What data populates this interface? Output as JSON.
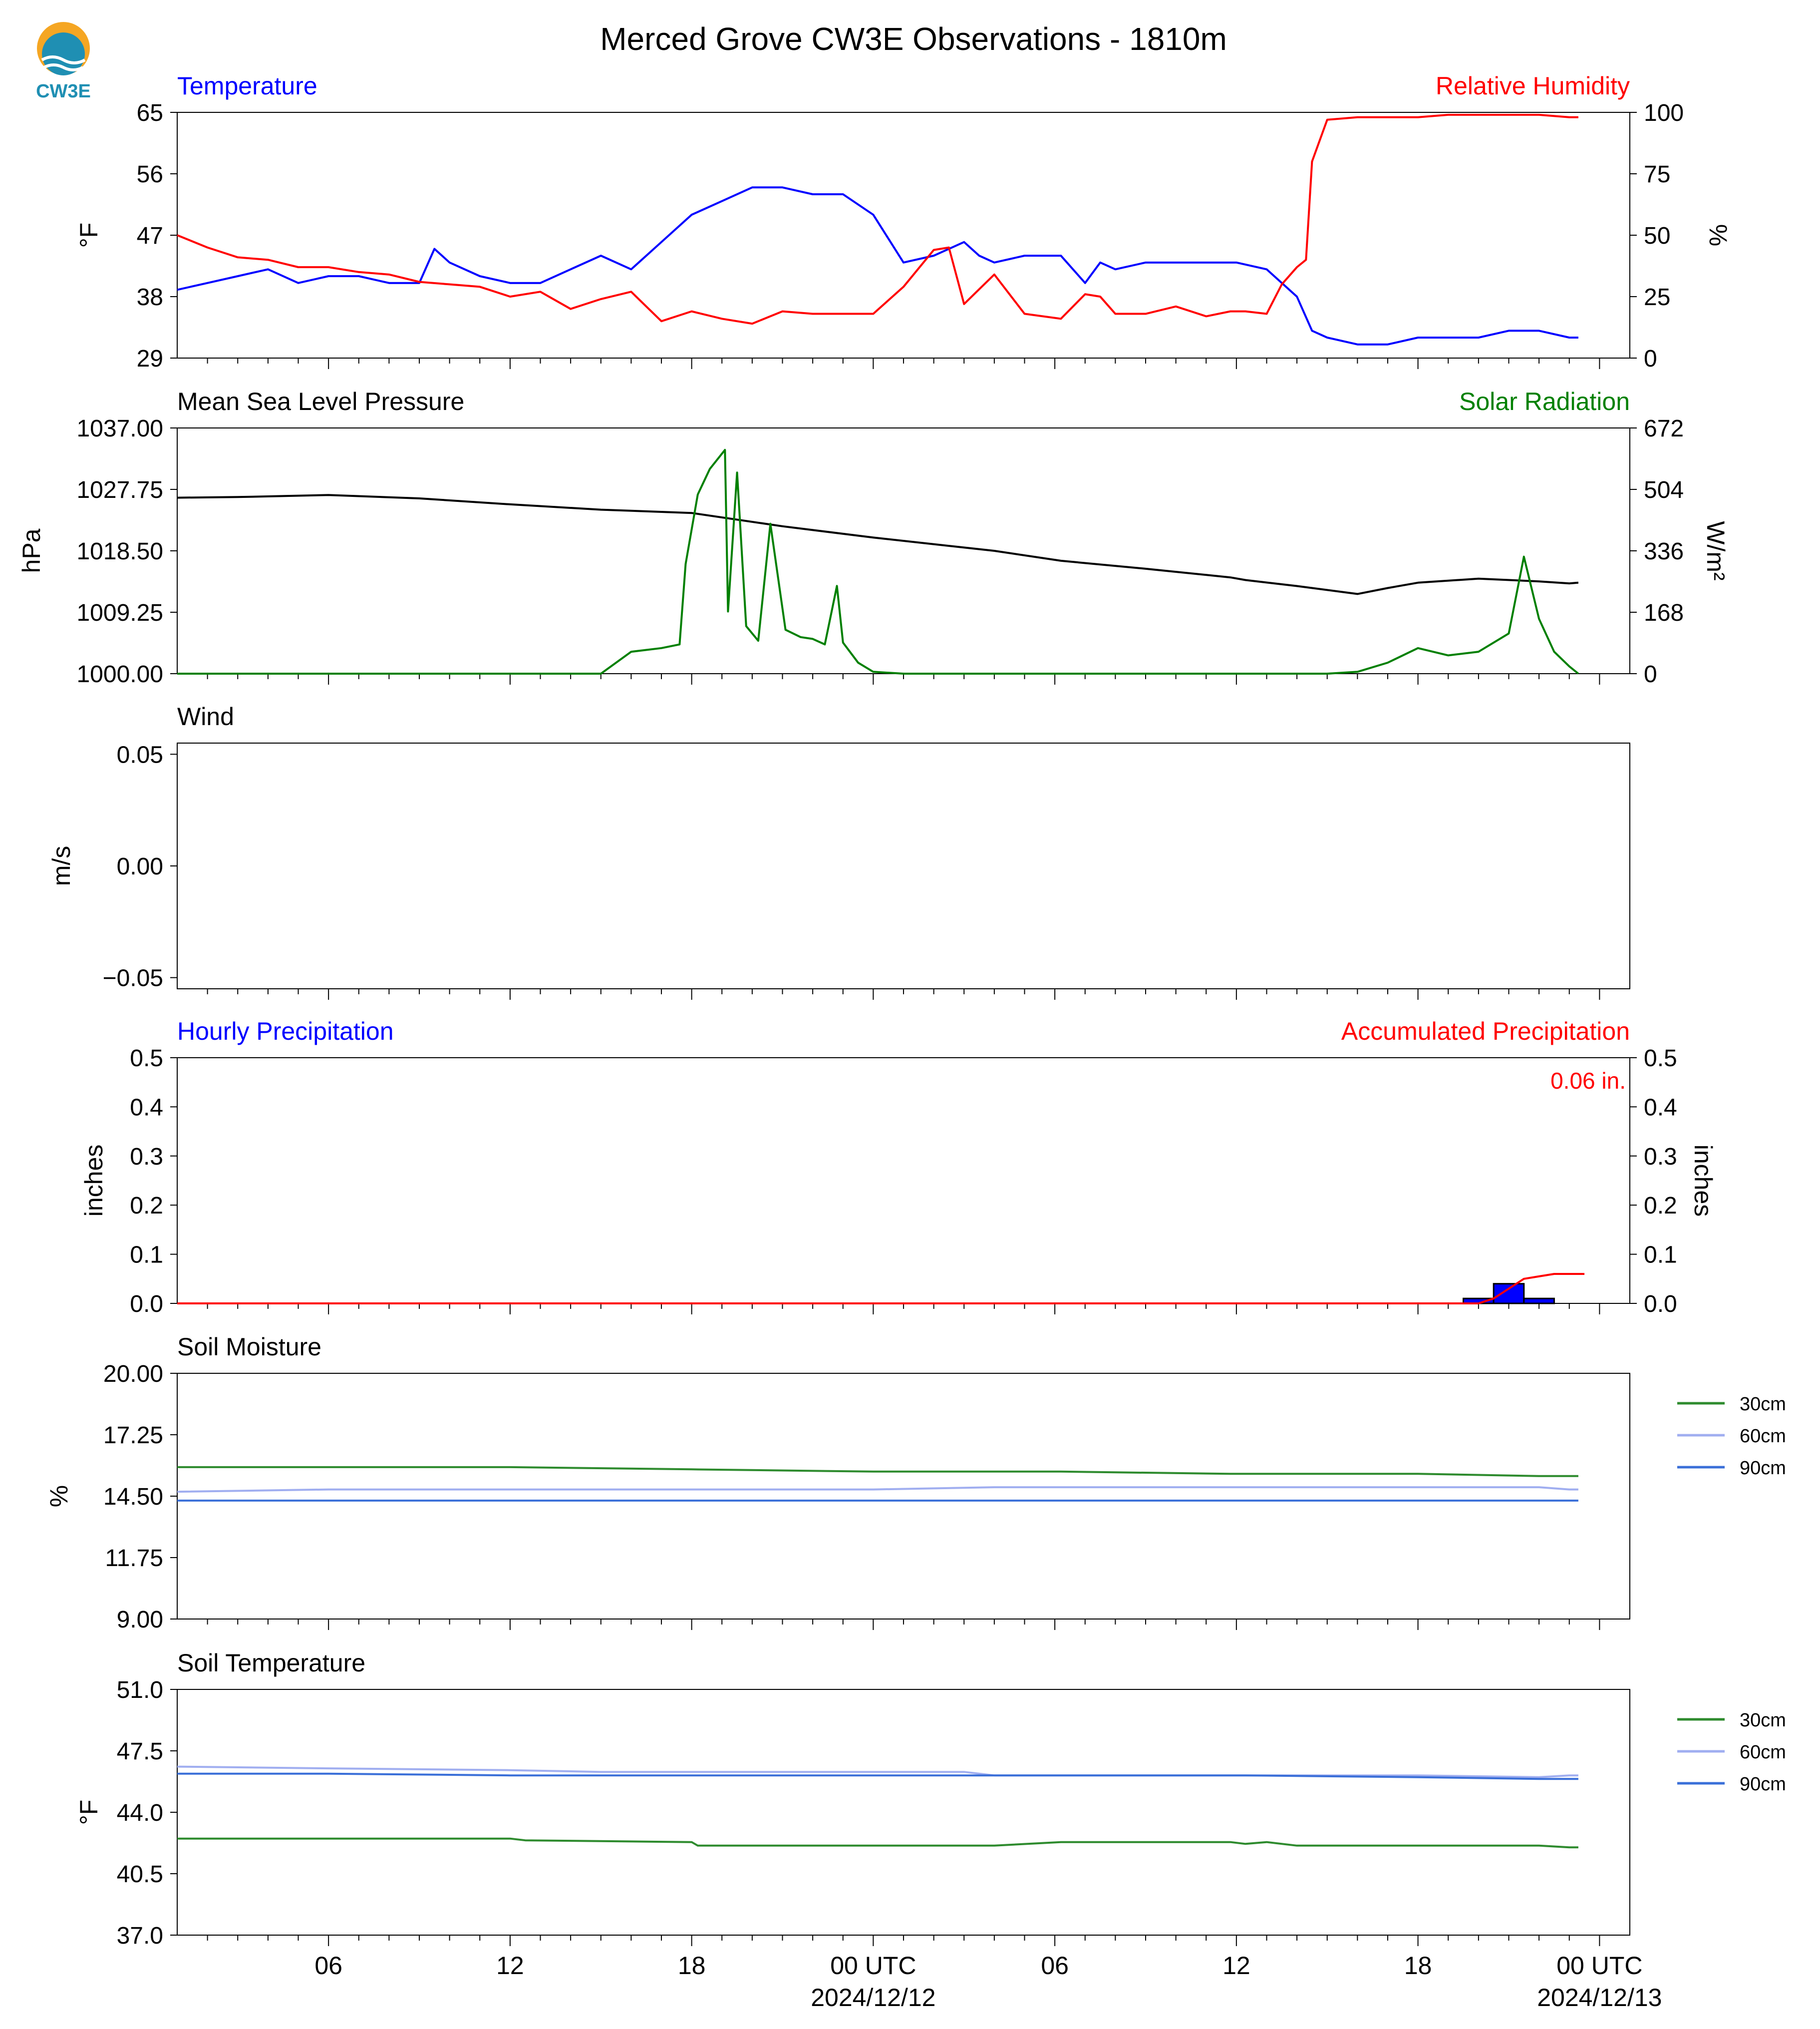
{
  "figure": {
    "title": "Merced Grove CW3E Observations - 1810m",
    "logo_text": "CW3E",
    "colors": {
      "blue": "#0000ff",
      "red": "#ff0000",
      "green": "#008000",
      "black": "#000000",
      "soil_30": "#2e8b2e",
      "soil_60": "#a0aef0",
      "soil_90": "#3a6fd8",
      "logo_orange": "#f5a623",
      "logo_teal": "#1f8fb3"
    }
  },
  "x_axis": {
    "ticks": [
      {
        "t": 6,
        "label": "06"
      },
      {
        "t": 12,
        "label": "12"
      },
      {
        "t": 18,
        "label": "18"
      },
      {
        "t": 24,
        "label": "00 UTC",
        "date": "2024/12/12"
      },
      {
        "t": 30,
        "label": "06"
      },
      {
        "t": 36,
        "label": "12"
      },
      {
        "t": 42,
        "label": "18"
      },
      {
        "t": 48,
        "label": "00 UTC",
        "date": "2024/12/13"
      }
    ],
    "range_hours": [
      1,
      49
    ]
  },
  "chart_data": [
    {
      "type": "line",
      "title_left": "Temperature",
      "title_right": "Relative Humidity",
      "ylabel_left": "°F",
      "ylabel_right": "%",
      "ylim_left": [
        29,
        65
      ],
      "yticks_left": [
        29,
        38,
        47,
        56,
        65
      ],
      "ylim_right": [
        0,
        100
      ],
      "yticks_right": [
        0,
        25,
        50,
        75,
        100
      ],
      "series": [
        {
          "axis": "left",
          "color": "blue",
          "x": [
            1,
            2,
            3,
            4,
            5,
            6,
            7,
            8,
            9,
            9.5,
            10,
            11,
            12,
            13,
            14,
            15,
            16,
            17,
            18,
            19,
            20,
            21,
            22,
            23,
            24,
            25,
            26,
            27,
            27.5,
            28,
            29,
            30.2,
            31,
            31.5,
            32,
            33,
            34,
            35,
            35.8,
            36,
            37,
            38,
            38.5,
            39,
            40,
            41,
            42,
            43,
            44,
            45,
            46,
            47,
            47.3
          ],
          "y": [
            39,
            40,
            41,
            42,
            40,
            41,
            41,
            40,
            40,
            45,
            43,
            41,
            40,
            40,
            42,
            44,
            42,
            46,
            50,
            52,
            54,
            54,
            53,
            53,
            50,
            43,
            44,
            46,
            44,
            43,
            44,
            44,
            40,
            43,
            42,
            43,
            43,
            43,
            43,
            43,
            42,
            38,
            33,
            32,
            31,
            31,
            32,
            32,
            32,
            33,
            33,
            32,
            32
          ]
        },
        {
          "axis": "right",
          "color": "red",
          "x": [
            1,
            2,
            3,
            4,
            5,
            6,
            7,
            8,
            9,
            10,
            11,
            12,
            13,
            14,
            15,
            16,
            17,
            18,
            19,
            20,
            21,
            22,
            23,
            24,
            25,
            26,
            26.5,
            27,
            27.5,
            28,
            29,
            30.2,
            31,
            31.5,
            32,
            33,
            34,
            35,
            35.8,
            36.3,
            37,
            37.5,
            38,
            38.3,
            38.5,
            39,
            40,
            41,
            42,
            43,
            44,
            45,
            46,
            47,
            47.3
          ],
          "y": [
            50,
            45,
            41,
            40,
            37,
            37,
            35,
            34,
            31,
            30,
            29,
            25,
            27,
            20,
            24,
            27,
            15,
            19,
            16,
            14,
            19,
            18,
            18,
            18,
            29,
            44,
            45,
            22,
            28,
            34,
            18,
            16,
            26,
            25,
            18,
            18,
            21,
            17,
            19,
            19,
            18,
            30,
            37,
            40,
            80,
            97,
            98,
            98,
            98,
            99,
            99,
            99,
            99,
            98,
            98
          ]
        }
      ]
    },
    {
      "type": "line",
      "title_left": "Mean Sea Level Pressure",
      "title_right": "Solar Radiation",
      "ylabel_left": "hPa",
      "ylabel_right": "W/m²",
      "ylim_left": [
        1000,
        1037
      ],
      "yticks_left": [
        1000.0,
        1009.25,
        1018.5,
        1027.75,
        1037.0
      ],
      "ylim_right": [
        0,
        672
      ],
      "yticks_right": [
        0,
        168,
        336,
        504,
        672
      ],
      "series": [
        {
          "axis": "left",
          "color": "black",
          "x": [
            1,
            3,
            6,
            9,
            12,
            15,
            18,
            21,
            24,
            27,
            28,
            30.2,
            33,
            35.8,
            36.3,
            38,
            40,
            41,
            42,
            44,
            46,
            47,
            47.3
          ],
          "y": [
            1026.5,
            1026.6,
            1026.9,
            1026.4,
            1025.5,
            1024.7,
            1024.2,
            1022.2,
            1020.5,
            1019.0,
            1018.5,
            1017.0,
            1015.8,
            1014.5,
            1014.1,
            1013.2,
            1012.0,
            1012.9,
            1013.7,
            1014.3,
            1013.9,
            1013.6,
            1013.7
          ]
        },
        {
          "axis": "right",
          "color": "green",
          "x": [
            1,
            15,
            16,
            17,
            17.6,
            17.8,
            18.2,
            18.6,
            19.1,
            19.2,
            19.5,
            19.8,
            20.2,
            20.6,
            21.1,
            21.6,
            22,
            22.4,
            22.8,
            23,
            23.5,
            24,
            25,
            26,
            27,
            28,
            29,
            30.2,
            33,
            35.8,
            36.3,
            38,
            39,
            40,
            41,
            42,
            43,
            44,
            45,
            45.5,
            46,
            46.5,
            47,
            47.3
          ],
          "y": [
            0,
            0,
            60,
            70,
            80,
            300,
            490,
            560,
            612,
            170,
            550,
            130,
            90,
            410,
            120,
            100,
            95,
            80,
            240,
            85,
            30,
            5,
            0,
            0,
            0,
            0,
            0,
            0,
            0,
            0,
            0,
            0,
            0,
            5,
            30,
            70,
            50,
            60,
            110,
            320,
            150,
            60,
            20,
            0
          ]
        }
      ]
    },
    {
      "type": "line",
      "title_left": "Wind",
      "ylabel_left": "m/s",
      "ylim_left": [
        -0.055,
        0.055
      ],
      "yticks_left": [
        -0.05,
        0.0,
        0.05
      ],
      "series": []
    },
    {
      "type": "bar",
      "title_left": "Hourly Precipitation",
      "title_right": "Accumulated Precipitation",
      "annotation": "0.06 in.",
      "ylabel_left": "inches",
      "ylabel_right": "inches",
      "ylim_left": [
        0,
        0.5
      ],
      "yticks_left": [
        0.0,
        0.1,
        0.2,
        0.3,
        0.4,
        0.5
      ],
      "ylim_right": [
        0,
        0.5
      ],
      "yticks_right": [
        0.0,
        0.1,
        0.2,
        0.3,
        0.4,
        0.5
      ],
      "bars": {
        "x": [
          44,
          45,
          46
        ],
        "values": [
          0.01,
          0.04,
          0.01
        ],
        "color": "blue"
      },
      "series": [
        {
          "axis": "right",
          "color": "red",
          "x": [
            1,
            44,
            44.5,
            45,
            45.5,
            46,
            46.5,
            47.5
          ],
          "y": [
            0,
            0,
            0.01,
            0.03,
            0.05,
            0.055,
            0.06,
            0.06
          ]
        }
      ]
    },
    {
      "type": "line",
      "title_left": "Soil Moisture",
      "ylabel_left": "%",
      "ylim_left": [
        9,
        20
      ],
      "yticks_left": [
        9.0,
        11.75,
        14.5,
        17.25,
        20.0
      ],
      "legend": [
        "30cm",
        "60cm",
        "90cm"
      ],
      "series": [
        {
          "name": "30cm",
          "color": "soil_30",
          "x": [
            1,
            6,
            12,
            18,
            24,
            28,
            30.2,
            35.8,
            36.3,
            42,
            46,
            47,
            47.3
          ],
          "y": [
            15.8,
            15.8,
            15.8,
            15.7,
            15.6,
            15.6,
            15.6,
            15.5,
            15.5,
            15.5,
            15.4,
            15.4,
            15.4
          ]
        },
        {
          "name": "60cm",
          "color": "soil_60",
          "x": [
            1,
            6,
            12,
            18,
            24,
            28,
            30.2,
            35.8,
            36.3,
            42,
            46,
            47,
            47.3
          ],
          "y": [
            14.7,
            14.8,
            14.8,
            14.8,
            14.8,
            14.9,
            14.9,
            14.9,
            14.9,
            14.9,
            14.9,
            14.8,
            14.8
          ]
        },
        {
          "name": "90cm",
          "color": "soil_90",
          "x": [
            1,
            6,
            12,
            18,
            24,
            28,
            30.2,
            35.8,
            36.3,
            42,
            46,
            47,
            47.3
          ],
          "y": [
            14.3,
            14.3,
            14.3,
            14.3,
            14.3,
            14.3,
            14.3,
            14.3,
            14.3,
            14.3,
            14.3,
            14.3,
            14.3
          ]
        }
      ]
    },
    {
      "type": "line",
      "title_left": "Soil Temperature",
      "ylabel_left": "°F",
      "ylim_left": [
        37,
        51
      ],
      "yticks_left": [
        37.0,
        40.5,
        44.0,
        47.5,
        51.0
      ],
      "legend": [
        "30cm",
        "60cm",
        "90cm"
      ],
      "series": [
        {
          "name": "30cm",
          "color": "soil_30",
          "x": [
            1,
            12,
            12.5,
            18,
            18.2,
            28,
            30.2,
            35.8,
            36.3,
            37,
            38,
            46,
            47,
            47.3
          ],
          "y": [
            42.5,
            42.5,
            42.4,
            42.3,
            42.1,
            42.1,
            42.3,
            42.3,
            42.2,
            42.3,
            42.1,
            42.1,
            42.0,
            42.0
          ]
        },
        {
          "name": "60cm",
          "color": "soil_60",
          "x": [
            1,
            6,
            12,
            15,
            18,
            24,
            27,
            28,
            30.2,
            35.8,
            36.3,
            42,
            46,
            47,
            47.3
          ],
          "y": [
            46.6,
            46.5,
            46.4,
            46.3,
            46.3,
            46.3,
            46.3,
            46.1,
            46.1,
            46.1,
            46.1,
            46.1,
            46.0,
            46.1,
            46.1
          ]
        },
        {
          "name": "90cm",
          "color": "soil_90",
          "x": [
            1,
            6,
            12,
            18,
            24,
            27,
            28,
            30.2,
            35.8,
            36.3,
            42,
            46,
            47,
            47.3
          ],
          "y": [
            46.2,
            46.2,
            46.1,
            46.1,
            46.1,
            46.1,
            46.1,
            46.1,
            46.1,
            46.1,
            46.0,
            45.9,
            45.9,
            45.9
          ]
        }
      ]
    }
  ]
}
